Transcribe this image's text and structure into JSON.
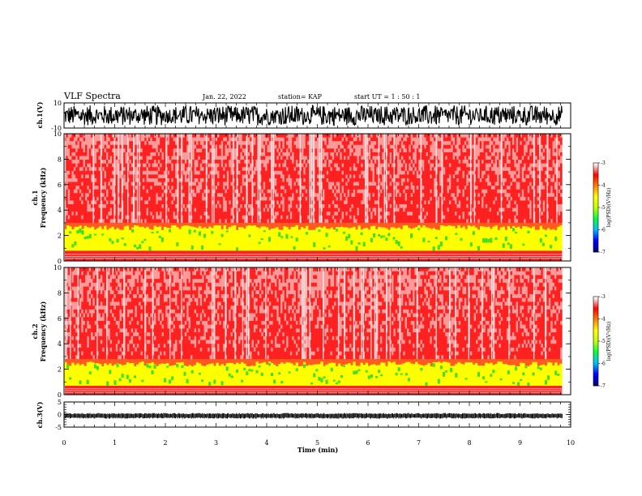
{
  "header": {
    "title": "VLF Spectra",
    "date": "Jan. 22, 2022",
    "station": "station= KAP",
    "start": "start  UT =   1 : 50 : 1"
  },
  "colors": {
    "background": "#ffffff",
    "trace": "#000000",
    "spec_low": "#ffffff",
    "spec_mid": "#ff2020",
    "spec_band": "#ffff00",
    "spec_green": "#40e020",
    "colorbar": [
      "#000080",
      "#0000ff",
      "#00c0ff",
      "#00ff40",
      "#c0ff00",
      "#ffff00",
      "#ff8000",
      "#ff0000",
      "#ffffff"
    ]
  },
  "chart_data": [
    {
      "type": "line",
      "name": "ch1-waveform",
      "ylabel": "ch.1(V)",
      "ylim": [
        -10,
        10
      ],
      "ytick_labels": [
        "10",
        "-10"
      ],
      "xlim": [
        0,
        10
      ],
      "description_values": {
        "amplitude_fill": [
          -8,
          8
        ]
      },
      "data_end_min": 9.83
    },
    {
      "type": "heatmap",
      "name": "ch1-spectrogram",
      "ylabel": "ch.1\nFrequency  (kHz)",
      "ylim": [
        0,
        10
      ],
      "ytick_labels": [
        "0",
        "2",
        "4",
        "6",
        "8",
        "10"
      ],
      "xlim": [
        0,
        10
      ],
      "band_kHz": [
        0.8,
        3.0
      ],
      "data_end_min": 9.83,
      "colorbar": {
        "label": "log(PSD)(V²/Hz)",
        "range": [
          -7,
          -3
        ],
        "tick_labels": [
          "-3",
          "-4",
          "-5",
          "-6",
          "-7"
        ]
      }
    },
    {
      "type": "heatmap",
      "name": "ch2-spectrogram",
      "ylabel": "ch.2\nFrequency  (kHz)",
      "ylim": [
        0,
        10
      ],
      "ytick_labels": [
        "0",
        "2",
        "4",
        "6",
        "8",
        "10"
      ],
      "xlim": [
        0,
        10
      ],
      "band_kHz": [
        0.7,
        2.8
      ],
      "data_end_min": 9.83,
      "colorbar": {
        "label": "log(PSD)(V²/Hz)",
        "range": [
          -7,
          -3
        ],
        "tick_labels": [
          "-3",
          "-4",
          "-5",
          "-6",
          "-7"
        ]
      }
    },
    {
      "type": "line",
      "name": "ch3-waveform",
      "ylabel": "ch.3(V)",
      "ylim": [
        -5,
        5
      ],
      "ytick_labels": [
        "5",
        "0",
        "-5"
      ],
      "xlim": [
        0,
        10
      ],
      "level_V": -0.5,
      "data_end_min": 9.83
    }
  ],
  "x_axis": {
    "label": "Time  (min)",
    "tick_labels": [
      "0",
      "1",
      "2",
      "3",
      "4",
      "5",
      "6",
      "7",
      "8",
      "9",
      "10"
    ]
  }
}
